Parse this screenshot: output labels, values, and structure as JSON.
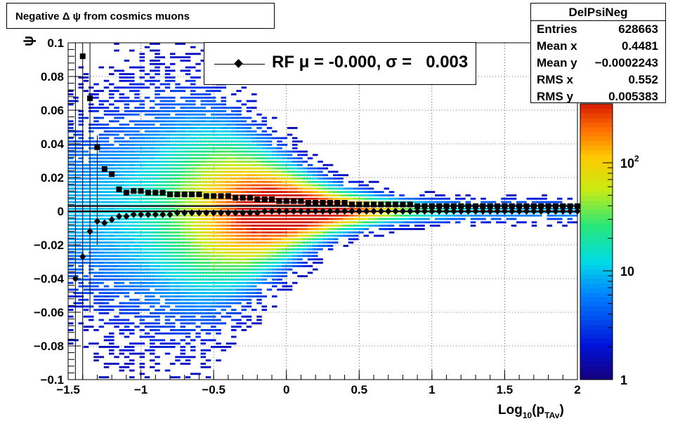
{
  "title": "Negative Δ ψ from cosmics muons",
  "stats": {
    "name": "DelPsiNeg",
    "rows": [
      {
        "label": "Entries",
        "value": "628663"
      },
      {
        "label": "Mean x",
        "value": "0.4481"
      },
      {
        "label": "Mean y",
        "value": "−0.0002243"
      },
      {
        "label": "RMS x",
        "value": "0.552"
      },
      {
        "label": "RMS y",
        "value": "0.005383"
      }
    ]
  },
  "legend": {
    "text": "RF μ = -0.000, σ =   0.003"
  },
  "chart_data": {
    "type": "heatmap",
    "title": "Negative Δ ψ from cosmics muons",
    "xlabel": "Log10(pTAv)",
    "ylabel": "ψ",
    "xlim": [
      -1.5,
      2
    ],
    "ylim": [
      -0.1,
      0.1
    ],
    "x_ticks": [
      "−1.5",
      "−1",
      "−0.5",
      "0",
      "0.5",
      "1",
      "1.5",
      "2"
    ],
    "y_ticks": [
      "−0.1",
      "−0.08",
      "−0.06",
      "−0.04",
      "−0.02",
      "0",
      "0.02",
      "0.04",
      "0.06",
      "0.08",
      "0.1"
    ],
    "colorbar_ticks": [
      "1",
      "10",
      "10^2"
    ],
    "colorbar_scale": "log",
    "grid": true,
    "series": [
      {
        "name": "RF μ",
        "marker": "diamond",
        "x": [
          -1.45,
          -1.4,
          -1.35,
          -1.3,
          -1.25,
          -1.2,
          -1.15,
          -1.1,
          -1.05,
          -1.0,
          -0.95,
          -0.9,
          -0.85,
          -0.8,
          -0.75,
          -0.7,
          -0.65,
          -0.6,
          -0.55,
          -0.5,
          -0.45,
          -0.4,
          -0.35,
          -0.3,
          -0.25,
          -0.2,
          -0.15,
          -0.1,
          -0.05,
          0.0,
          0.05,
          0.1,
          0.15,
          0.2,
          0.25,
          0.3,
          0.35,
          0.4,
          0.45,
          0.5,
          0.55,
          0.6,
          0.65,
          0.7,
          0.75,
          0.8,
          0.85,
          0.9,
          0.95,
          1.0,
          1.05,
          1.1,
          1.15,
          1.2,
          1.25,
          1.3,
          1.35,
          1.4,
          1.45,
          1.5,
          1.55,
          1.6,
          1.65,
          1.7,
          1.75,
          1.8,
          1.85,
          1.9,
          1.95,
          2.0
        ],
        "y": [
          -0.04,
          -0.027,
          -0.012,
          -0.006,
          -0.007,
          -0.005,
          -0.003,
          -0.003,
          -0.002,
          -0.002,
          -0.002,
          -0.002,
          -0.002,
          -0.002,
          -0.001,
          -0.001,
          -0.001,
          -0.001,
          -0.001,
          -0.001,
          -0.001,
          -0.001,
          -0.001,
          -0.001,
          -0.001,
          -0.001,
          0.0,
          0.0,
          0.0,
          0.0,
          0.0,
          0.0,
          0.0,
          0.0,
          0.0,
          0.0,
          0.0,
          0.0,
          0.0,
          0.0,
          0.0,
          0.0,
          0.0,
          0.0,
          0.0,
          0.0,
          0.0,
          0.0,
          0.0,
          0.0,
          0.0,
          0.0,
          0.0,
          0.0,
          0.0,
          0.0,
          0.0,
          0.0,
          0.0,
          0.0,
          0.0,
          0.0,
          0.0,
          0.0,
          0.0,
          0.0,
          0.0,
          0.0,
          0.0,
          0.0
        ]
      },
      {
        "name": "σ",
        "marker": "square",
        "x": [
          -1.4,
          -1.35,
          -1.3,
          -1.25,
          -1.2,
          -1.15,
          -1.1,
          -1.05,
          -1.0,
          -0.95,
          -0.9,
          -0.85,
          -0.8,
          -0.75,
          -0.7,
          -0.65,
          -0.6,
          -0.55,
          -0.5,
          -0.45,
          -0.4,
          -0.35,
          -0.3,
          -0.25,
          -0.2,
          -0.15,
          -0.1,
          -0.05,
          0.0,
          0.05,
          0.1,
          0.15,
          0.2,
          0.25,
          0.3,
          0.35,
          0.4,
          0.45,
          0.5,
          0.55,
          0.6,
          0.65,
          0.7,
          0.75,
          0.8,
          0.85,
          0.9,
          0.95,
          1.0,
          1.05,
          1.1,
          1.15,
          1.2,
          1.25,
          1.3,
          1.35,
          1.4,
          1.45,
          1.5,
          1.55,
          1.6,
          1.65,
          1.7,
          1.75,
          1.8,
          1.85,
          1.9,
          1.95,
          2.0
        ],
        "y": [
          0.092,
          0.067,
          0.038,
          0.025,
          0.022,
          0.013,
          0.011,
          0.012,
          0.012,
          0.011,
          0.011,
          0.011,
          0.01,
          0.01,
          0.01,
          0.01,
          0.01,
          0.009,
          0.009,
          0.009,
          0.009,
          0.008,
          0.008,
          0.008,
          0.007,
          0.007,
          0.007,
          0.006,
          0.006,
          0.006,
          0.006,
          0.005,
          0.005,
          0.005,
          0.005,
          0.005,
          0.005,
          0.004,
          0.004,
          0.004,
          0.004,
          0.004,
          0.004,
          0.004,
          0.004,
          0.004,
          0.003,
          0.003,
          0.003,
          0.003,
          0.003,
          0.003,
          0.003,
          0.003,
          0.003,
          0.003,
          0.003,
          0.003,
          0.003,
          0.003,
          0.003,
          0.003,
          0.003,
          0.003,
          0.003,
          0.003,
          0.003,
          0.003,
          0.003
        ]
      }
    ]
  }
}
